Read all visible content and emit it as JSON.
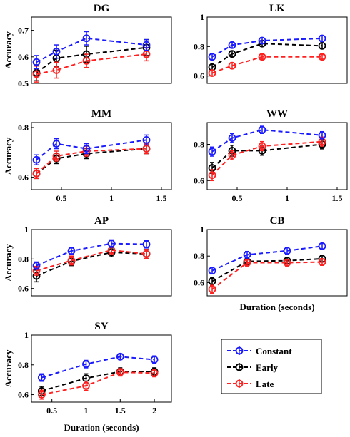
{
  "colors": {
    "Constant": "#1a1aff",
    "Early": "#000000",
    "Late": "#ff2020"
  },
  "legend": {
    "placement": "bottom-right",
    "items": [
      "Constant",
      "Early",
      "Late"
    ]
  },
  "shared": {
    "ylabel": "Accuracy",
    "xlabel": "Duration (seconds)"
  },
  "chart_data": [
    {
      "type": "line",
      "title": "DG",
      "ylabel": "Accuracy",
      "xlabel": "",
      "xlim": [
        0.2,
        1.6
      ],
      "ylim": [
        0.5,
        0.75
      ],
      "xticks": [],
      "yticks": [
        0.5,
        0.6,
        0.7
      ],
      "yticklabels": [
        "0.5",
        "0.6",
        "0.7"
      ],
      "x": [
        0.25,
        0.45,
        0.75,
        1.35
      ],
      "series": [
        {
          "name": "Constant",
          "values": [
            0.58,
            0.62,
            0.67,
            0.645
          ],
          "err": [
            0.025,
            0.025,
            0.025,
            0.02
          ]
        },
        {
          "name": "Early",
          "values": [
            0.54,
            0.595,
            0.61,
            0.635
          ],
          "err": [
            0.03,
            0.03,
            0.03,
            0.03
          ]
        },
        {
          "name": "Late",
          "values": [
            0.535,
            0.55,
            0.585,
            0.61
          ],
          "err": [
            0.03,
            0.03,
            0.025,
            0.025
          ]
        }
      ]
    },
    {
      "type": "line",
      "title": "LK",
      "ylabel": "",
      "xlabel": "",
      "xlim": [
        0.2,
        1.6
      ],
      "ylim": [
        0.55,
        1.0
      ],
      "xticks": [],
      "yticks": [
        0.6,
        0.8,
        1.0
      ],
      "yticklabels": [
        "0.6",
        "0.8",
        "1"
      ],
      "x": [
        0.25,
        0.45,
        0.75,
        1.35
      ],
      "series": [
        {
          "name": "Constant",
          "values": [
            0.73,
            0.81,
            0.84,
            0.855
          ],
          "err": [
            0.02,
            0.02,
            0.02,
            0.02
          ]
        },
        {
          "name": "Early",
          "values": [
            0.66,
            0.75,
            0.82,
            0.805
          ],
          "err": [
            0.02,
            0.02,
            0.02,
            0.02
          ]
        },
        {
          "name": "Late",
          "values": [
            0.62,
            0.67,
            0.73,
            0.73
          ],
          "err": [
            0.02,
            0.02,
            0.015,
            0.015
          ]
        }
      ]
    },
    {
      "type": "line",
      "title": "MM",
      "ylabel": "Accuracy",
      "xlabel": "",
      "xlim": [
        0.2,
        1.6
      ],
      "ylim": [
        0.55,
        0.82
      ],
      "xticks": [
        0.5,
        1.0,
        1.5
      ],
      "xticklabels": [
        "0.5",
        "1",
        "1.5"
      ],
      "yticks": [
        0.6,
        0.8
      ],
      "yticklabels": [
        "0.6",
        "0.8"
      ],
      "x": [
        0.25,
        0.45,
        0.75,
        1.35
      ],
      "series": [
        {
          "name": "Constant",
          "values": [
            0.67,
            0.735,
            0.715,
            0.75
          ],
          "err": [
            0.02,
            0.02,
            0.02,
            0.02
          ]
        },
        {
          "name": "Early",
          "values": [
            0.615,
            0.675,
            0.695,
            0.715
          ],
          "err": [
            0.02,
            0.02,
            0.02,
            0.02
          ]
        },
        {
          "name": "Late",
          "values": [
            0.615,
            0.685,
            0.705,
            0.715
          ],
          "err": [
            0.02,
            0.02,
            0.02,
            0.02
          ]
        }
      ]
    },
    {
      "type": "line",
      "title": "WW",
      "ylabel": "",
      "xlabel": "",
      "xlim": [
        0.2,
        1.6
      ],
      "ylim": [
        0.55,
        0.92
      ],
      "xticks": [
        0.5,
        1.0,
        1.5
      ],
      "xticklabels": [
        "0.5",
        "1",
        "1.5"
      ],
      "yticks": [
        0.6,
        0.8
      ],
      "yticklabels": [
        "0.6",
        "0.8"
      ],
      "x": [
        0.25,
        0.45,
        0.75,
        1.35
      ],
      "series": [
        {
          "name": "Constant",
          "values": [
            0.76,
            0.835,
            0.88,
            0.85
          ],
          "err": [
            0.025,
            0.025,
            0.02,
            0.02
          ]
        },
        {
          "name": "Early",
          "values": [
            0.67,
            0.765,
            0.765,
            0.8
          ],
          "err": [
            0.03,
            0.03,
            0.025,
            0.025
          ]
        },
        {
          "name": "Late",
          "values": [
            0.63,
            0.74,
            0.79,
            0.815
          ],
          "err": [
            0.03,
            0.025,
            0.025,
            0.025
          ]
        }
      ]
    },
    {
      "type": "line",
      "title": "AP",
      "ylabel": "Accuracy",
      "xlabel": "",
      "xlim": [
        0.2,
        1.6
      ],
      "ylim": [
        0.55,
        1.0
      ],
      "xticks": [],
      "yticks": [
        0.6,
        0.8,
        1.0
      ],
      "yticklabels": [
        "0.6",
        "0.8",
        "1"
      ],
      "x": [
        0.25,
        0.6,
        1.0,
        1.35
      ],
      "series": [
        {
          "name": "Constant",
          "values": [
            0.755,
            0.855,
            0.905,
            0.9
          ],
          "err": [
            0.025,
            0.025,
            0.025,
            0.025
          ]
        },
        {
          "name": "Early",
          "values": [
            0.685,
            0.785,
            0.845,
            0.835
          ],
          "err": [
            0.04,
            0.03,
            0.03,
            0.03
          ]
        },
        {
          "name": "Late",
          "values": [
            0.72,
            0.79,
            0.86,
            0.835
          ],
          "err": [
            0.03,
            0.03,
            0.025,
            0.03
          ]
        }
      ]
    },
    {
      "type": "line",
      "title": "CB",
      "ylabel": "",
      "xlabel": "Duration (seconds)",
      "xlim": [
        0.2,
        1.6
      ],
      "ylim": [
        0.5,
        1.0
      ],
      "xticks": [],
      "yticks": [
        0.6,
        0.8,
        1.0
      ],
      "yticklabels": [
        "0.6",
        "0.8",
        "1"
      ],
      "x": [
        0.25,
        0.6,
        1.0,
        1.35
      ],
      "series": [
        {
          "name": "Constant",
          "values": [
            0.69,
            0.81,
            0.84,
            0.875
          ],
          "err": [
            0.025,
            0.025,
            0.025,
            0.02
          ]
        },
        {
          "name": "Early",
          "values": [
            0.61,
            0.76,
            0.765,
            0.78
          ],
          "err": [
            0.03,
            0.025,
            0.025,
            0.025
          ]
        },
        {
          "name": "Late",
          "values": [
            0.55,
            0.75,
            0.75,
            0.755
          ],
          "err": [
            0.03,
            0.025,
            0.025,
            0.025
          ]
        }
      ]
    },
    {
      "type": "line",
      "title": "SY",
      "ylabel": "Accuracy",
      "xlabel": "Duration (seconds)",
      "xlim": [
        0.2,
        2.25
      ],
      "ylim": [
        0.55,
        1.0
      ],
      "xticks": [
        0.5,
        1.0,
        1.5,
        2.0
      ],
      "xticklabels": [
        "0.5",
        "1",
        "1.5",
        "2"
      ],
      "yticks": [
        0.6,
        0.8,
        1.0
      ],
      "yticklabels": [
        "0.6",
        "0.8",
        "1"
      ],
      "x": [
        0.35,
        1.0,
        1.5,
        2.0
      ],
      "series": [
        {
          "name": "Constant",
          "values": [
            0.715,
            0.805,
            0.855,
            0.835
          ],
          "err": [
            0.025,
            0.025,
            0.02,
            0.025
          ]
        },
        {
          "name": "Early",
          "values": [
            0.625,
            0.71,
            0.755,
            0.755
          ],
          "err": [
            0.03,
            0.03,
            0.025,
            0.025
          ]
        },
        {
          "name": "Late",
          "values": [
            0.6,
            0.66,
            0.75,
            0.745
          ],
          "err": [
            0.03,
            0.03,
            0.025,
            0.025
          ]
        }
      ]
    }
  ]
}
